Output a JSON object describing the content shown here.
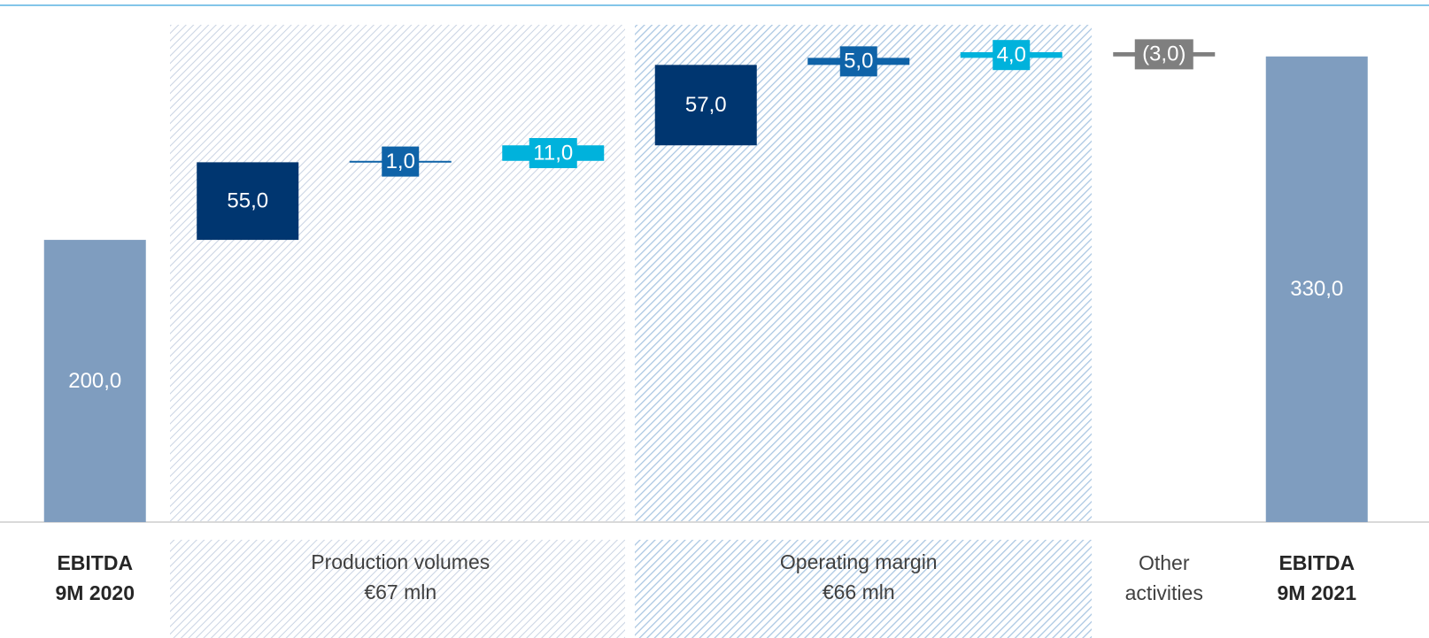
{
  "chart_data": {
    "type": "waterfall",
    "categories": [
      [
        "EBITDA",
        "9M 2020"
      ],
      null,
      null,
      null,
      null,
      null,
      null,
      [
        "Other",
        "activities"
      ],
      [
        "EBITDA",
        "9M 2021"
      ]
    ],
    "measure": [
      "absolute",
      "relative",
      "relative",
      "relative",
      "relative",
      "relative",
      "relative",
      "relative",
      "total"
    ],
    "values": [
      200,
      55,
      1,
      11,
      57,
      5,
      4,
      -3,
      330
    ],
    "value_labels": [
      "200,0",
      "55,0",
      "1,0",
      "11,0",
      "57,0",
      "5,0",
      "4,0",
      "(3,0)",
      "330,0"
    ],
    "colors": [
      "#7f9dbf",
      "#003670",
      "#0f63a8",
      "#00b2dc",
      "#003670",
      "#0f63a8",
      "#00b2dc",
      "#7f7f7f",
      "#7f9dbf"
    ],
    "groups": [
      {
        "lines": [
          "Production volumes",
          "€67 mln"
        ]
      },
      {
        "lines": [
          "Operating margin",
          "€66 mln"
        ]
      }
    ],
    "ylim": [
      0,
      370
    ]
  }
}
